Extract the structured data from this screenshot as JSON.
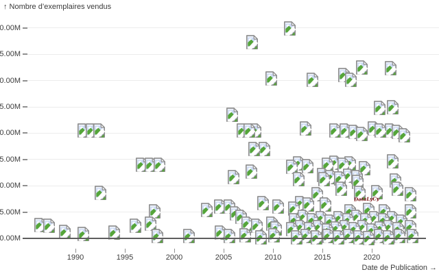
{
  "header": {
    "title": "↑ Nombre d’exemplaires vendus"
  },
  "x_axis": {
    "caption": "Date de Publication →",
    "ticks": [
      1990,
      1995,
      2000,
      2005,
      2010,
      2015,
      2020
    ]
  },
  "y_axis": {
    "ticks": [
      {
        "value": 40,
        "label": "40.00M"
      },
      {
        "value": 35,
        "label": "35.00M"
      },
      {
        "value": 30,
        "label": "30.00M"
      },
      {
        "value": 25,
        "label": "25.00M"
      },
      {
        "value": 20,
        "label": "20.00M"
      },
      {
        "value": 15,
        "label": "15.00M"
      },
      {
        "value": 10,
        "label": "10.00M"
      },
      {
        "value": 5,
        "label": "5.00M"
      },
      {
        "value": 0,
        "label": "0.00M"
      }
    ]
  },
  "watermark": {
    "text": "DataLyCy"
  },
  "colors": {
    "icon_page": "#edf2fb",
    "icon_border": "#8d8d8d",
    "icon_sky": "#cbd9f3",
    "icon_green": "#55a53a",
    "axis_line": "#5d5d5d",
    "gridline": "#ececec",
    "text": "#3b3b3b",
    "watermark_color": "#7b1113"
  },
  "chart_data": {
    "type": "scatter",
    "marker": "broken-image-placeholder-icon",
    "title": "Nombre d’exemplaires vendus vs Date de Publication",
    "xlabel": "Date de Publication",
    "ylabel": "Nombre d’exemplaires vendus (millions)",
    "xlim": [
      1985,
      2026
    ],
    "ylim": [
      0,
      40
    ],
    "grid": true,
    "legend": false,
    "units": "millions of copies",
    "points": [
      [
        2011.7,
        39.85
      ],
      [
        2007.9,
        37.25
      ],
      [
        2009.8,
        30.45
      ],
      [
        2014,
        30.2
      ],
      [
        2017.2,
        31.1
      ],
      [
        2017.9,
        30.2
      ],
      [
        2019,
        32.55
      ],
      [
        2021.9,
        32.4
      ],
      [
        2020.8,
        24.85
      ],
      [
        2022.1,
        25
      ],
      [
        2005.9,
        23.45
      ],
      [
        1990.8,
        20.45
      ],
      [
        1991.6,
        20.45
      ],
      [
        1992.4,
        20.45
      ],
      [
        2006.9,
        20.55
      ],
      [
        2007.6,
        20.45
      ],
      [
        2008.2,
        20.55
      ],
      [
        2013.3,
        20.85
      ],
      [
        2016.3,
        20.55
      ],
      [
        2017.3,
        20.55
      ],
      [
        2018.2,
        20.2
      ],
      [
        2019,
        19.8
      ],
      [
        2020.2,
        20.85
      ],
      [
        2020.9,
        20.45
      ],
      [
        2021.9,
        20.55
      ],
      [
        2022.6,
        20.2
      ],
      [
        2023.3,
        19.65
      ],
      [
        2008.1,
        16.95
      ],
      [
        2009.1,
        17.05
      ],
      [
        1996.7,
        14.05
      ],
      [
        1997.6,
        14.05
      ],
      [
        1998.5,
        14.05
      ],
      [
        2006,
        11.6
      ],
      [
        2007.8,
        12.75
      ],
      [
        2011.9,
        13.55
      ],
      [
        2012.6,
        14.2
      ],
      [
        2013.5,
        13.8
      ],
      [
        2015.5,
        14.05
      ],
      [
        2016.3,
        14.45
      ],
      [
        2017.1,
        14.05
      ],
      [
        2017.8,
        14.3
      ],
      [
        2019.3,
        13.4
      ],
      [
        2022.1,
        14.7
      ],
      [
        2015,
        12
      ],
      [
        2015.9,
        11.6
      ],
      [
        2016.8,
        11.35
      ],
      [
        2017.7,
        11.85
      ],
      [
        2018.5,
        11.6
      ],
      [
        1992.5,
        8.6
      ],
      [
        2012.6,
        11.2
      ],
      [
        2015.2,
        11.2
      ],
      [
        2016.9,
        9.5
      ],
      [
        2018.6,
        10.7
      ],
      [
        2018.8,
        8.7
      ],
      [
        2020.5,
        8.85
      ],
      [
        2022.4,
        11.05
      ],
      [
        2022.6,
        9.4
      ],
      [
        2023.9,
        8.45
      ],
      [
        2014.5,
        8.35
      ],
      [
        2009,
        6.75
      ],
      [
        2010.5,
        6
      ],
      [
        2012.1,
        5.6
      ],
      [
        2012.8,
        6.75
      ],
      [
        2013.6,
        6.5
      ],
      [
        2015.3,
        6.5
      ],
      [
        1998,
        5.1
      ],
      [
        2003.3,
        5.45
      ],
      [
        2004.6,
        6.1
      ],
      [
        2005.6,
        6.1
      ],
      [
        2006.2,
        4.7
      ],
      [
        2006.8,
        4.15
      ],
      [
        2007.4,
        2.85
      ],
      [
        2008.4,
        2.35
      ],
      [
        2009.9,
        2.85
      ],
      [
        2010.3,
        1.95
      ],
      [
        2017.8,
        5.2
      ],
      [
        2019.7,
        5.35
      ],
      [
        2021.3,
        5.2
      ],
      [
        2023.9,
        5.1
      ],
      [
        1986.4,
        2.6
      ],
      [
        1987.3,
        2.35
      ],
      [
        1988.9,
        1.3
      ],
      [
        1990.8,
        0.8
      ],
      [
        1993.9,
        1.05
      ],
      [
        1996.1,
        2.45
      ],
      [
        1997.6,
        2.75
      ],
      [
        1998.3,
        0.4
      ],
      [
        2001.5,
        0.4
      ],
      [
        2004.7,
        1.05
      ],
      [
        2005.6,
        0.5
      ],
      [
        2007.2,
        0.65
      ],
      [
        2008.8,
        0.25
      ],
      [
        2010.1,
        0.65
      ],
      [
        2012.2,
        3.5
      ],
      [
        2013.1,
        4.05
      ],
      [
        2014,
        3.4
      ],
      [
        2014.9,
        3.9
      ],
      [
        2015.8,
        3.25
      ],
      [
        2016.7,
        3.8
      ],
      [
        2017.6,
        3.4
      ],
      [
        2018.5,
        4.05
      ],
      [
        2019.4,
        3.5
      ],
      [
        2020.3,
        3.9
      ],
      [
        2021.2,
        3.4
      ],
      [
        2022.1,
        3.8
      ],
      [
        2023,
        3.25
      ],
      [
        2011.9,
        1.8
      ],
      [
        2012.8,
        2.2
      ],
      [
        2013.7,
        1.7
      ],
      [
        2014.6,
        2.1
      ],
      [
        2015.5,
        1.55
      ],
      [
        2016.4,
        1.95
      ],
      [
        2017.3,
        2.2
      ],
      [
        2018.2,
        1.7
      ],
      [
        2019.1,
        2.1
      ],
      [
        2020,
        1.55
      ],
      [
        2020.9,
        1.95
      ],
      [
        2021.8,
        2.2
      ],
      [
        2022.7,
        1.7
      ],
      [
        2023.9,
        2.1
      ],
      [
        2012.4,
        0.25
      ],
      [
        2013.4,
        0.5
      ],
      [
        2014.4,
        0.15
      ],
      [
        2015.6,
        0.4
      ],
      [
        2016.6,
        0.15
      ],
      [
        2017.7,
        0.5
      ],
      [
        2018.7,
        0.25
      ],
      [
        2019.7,
        0.05
      ],
      [
        2020.8,
        0.4
      ],
      [
        2021.7,
        0.15
      ],
      [
        2022.8,
        0.5
      ],
      [
        2024.1,
        0.4
      ]
    ]
  }
}
